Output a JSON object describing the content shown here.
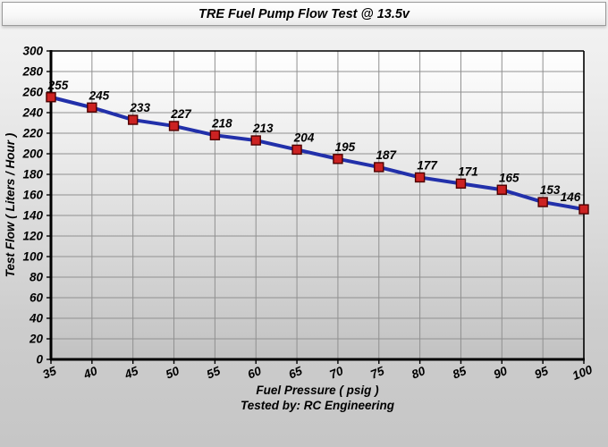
{
  "window": {
    "title": "TRE Fuel Pump Flow Test @ 13.5v"
  },
  "footer": {
    "tested_by": "Tested by: RC Engineering"
  },
  "chart_data": {
    "type": "line",
    "title": "TRE Fuel Pump Flow Test @ 13.5v",
    "xlabel": "Fuel Pressure ( psig )",
    "ylabel": "Test Flow ( Liters / Hour )",
    "x": [
      35,
      40,
      45,
      50,
      55,
      60,
      65,
      70,
      75,
      80,
      85,
      90,
      95,
      100
    ],
    "values": [
      255,
      245,
      233,
      227,
      218,
      213,
      204,
      195,
      187,
      177,
      171,
      165,
      153,
      146
    ],
    "point_labels": [
      "255",
      "245",
      "233",
      "227",
      "218",
      "213",
      "204",
      "195",
      "187",
      "177",
      "171",
      "165",
      "153",
      "146"
    ],
    "xlim": [
      35,
      100
    ],
    "ylim": [
      0,
      300
    ],
    "x_ticks": [
      35,
      40,
      45,
      50,
      55,
      60,
      65,
      70,
      75,
      80,
      85,
      90,
      95,
      100
    ],
    "y_ticks": [
      0,
      20,
      40,
      60,
      80,
      100,
      120,
      140,
      160,
      180,
      200,
      220,
      240,
      260,
      280,
      300
    ],
    "grid": true,
    "legend": "none",
    "colors": {
      "line": "#2230aa",
      "marker_fill": "#cc2222",
      "marker_border": "#4d0000",
      "grid": "#909090",
      "axis": "#000000",
      "plot_bg_top": "#ffffff",
      "plot_bg_bottom": "#c2c2c2"
    },
    "annotations": "values shown above each data point"
  }
}
